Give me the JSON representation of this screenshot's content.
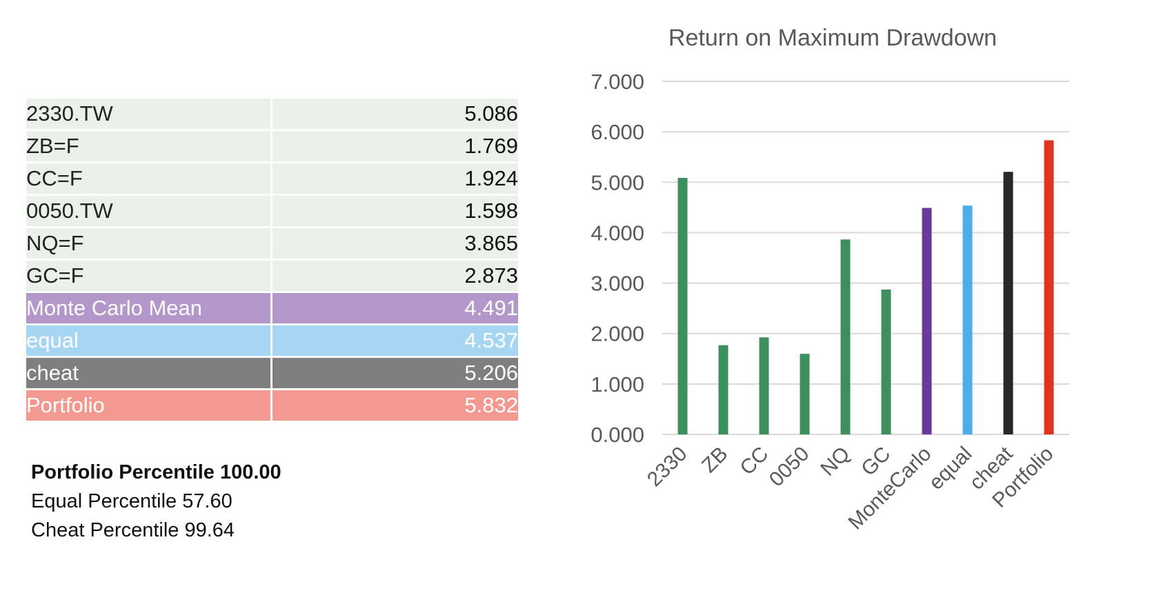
{
  "table": {
    "rows": [
      {
        "name": "2330.TW",
        "value": "5.086"
      },
      {
        "name": "ZB=F",
        "value": "1.769"
      },
      {
        "name": "CC=F",
        "value": "1.924"
      },
      {
        "name": "0050.TW",
        "value": "1.598"
      },
      {
        "name": "NQ=F",
        "value": "3.865"
      },
      {
        "name": "GC=F",
        "value": "2.873"
      },
      {
        "name": "Monte Carlo Mean",
        "value": "4.491"
      },
      {
        "name": "equal",
        "value": "4.537"
      },
      {
        "name": "cheat",
        "value": "5.206"
      },
      {
        "name": "Portfolio",
        "value": "5.832"
      }
    ]
  },
  "percentiles": {
    "portfolio": "Portfolio Percentile 100.00",
    "equal": "Equal Percentile 57.60",
    "cheat": "Cheat Percentile 99.64"
  },
  "colors": {
    "grid": "#d9d9d9",
    "axis_text": "#595959",
    "title_text": "#595959"
  },
  "chart_data": {
    "type": "bar",
    "title": "Return on Maximum Drawdown",
    "xlabel": "",
    "ylabel": "",
    "categories": [
      "2330",
      "ZB",
      "CC",
      "0050",
      "NQ",
      "GC",
      "MonteCarlo",
      "equal",
      "cheat",
      "Portfolio"
    ],
    "values": [
      5.086,
      1.769,
      1.924,
      1.598,
      3.865,
      2.873,
      4.491,
      4.537,
      5.206,
      5.832
    ],
    "bar_colors": [
      "#3e8f5e",
      "#3e8f5e",
      "#3e8f5e",
      "#3e8f5e",
      "#3e8f5e",
      "#3e8f5e",
      "#6a3a9a",
      "#4caee8",
      "#23282d",
      "#e03423"
    ],
    "ylim": [
      0,
      7
    ],
    "yticks": [
      "0.000",
      "1.000",
      "2.000",
      "3.000",
      "4.000",
      "5.000",
      "6.000",
      "7.000"
    ],
    "grid": true,
    "legend": "none"
  }
}
